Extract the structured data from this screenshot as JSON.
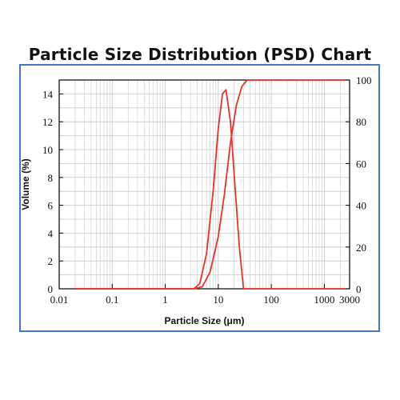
{
  "colors": {
    "frame": "#4a74c9",
    "curve": "#e8312a",
    "grid": "#c8c8c8",
    "axis": "#000000"
  },
  "chart_data": {
    "type": "line",
    "title": "Particle Size Distribution (PSD) Chart",
    "xlabel": "Particle Size (μm)",
    "ylabel": "Volume (%)",
    "x_scale": "log",
    "xlim": [
      0.01,
      3000
    ],
    "ylim_left": [
      0,
      15
    ],
    "ylim_right": [
      0,
      100
    ],
    "x_tick_labels": [
      "0.01",
      "0.1",
      "1",
      "10",
      "100",
      "1000",
      "3000"
    ],
    "y_left_tick_labels": [
      "0",
      "2",
      "4",
      "6",
      "8",
      "10",
      "12",
      "14"
    ],
    "y_right_tick_labels": [
      "0",
      "20",
      "40",
      "60",
      "80",
      "100"
    ],
    "grid": true,
    "series": [
      {
        "axis": "left",
        "x": [
          0.02,
          1.0,
          3.5,
          4.5,
          6.0,
          8.0,
          10.0,
          12.0,
          14.0,
          17.0,
          21.0,
          25.0,
          30.0,
          50.0,
          300.0,
          2500.0
        ],
        "values": [
          0,
          0,
          0,
          0.4,
          2.5,
          7.0,
          11.5,
          14.0,
          14.3,
          12.0,
          7.0,
          3.0,
          0,
          0,
          0,
          0
        ]
      },
      {
        "axis": "right",
        "x": [
          0.02,
          1.0,
          3.5,
          5.0,
          7.0,
          10.0,
          13.0,
          17.0,
          22.0,
          28.0,
          35.0,
          100.0,
          1000.0,
          2500.0
        ],
        "values": [
          0,
          0,
          0,
          1,
          8,
          25,
          45,
          70,
          88,
          97,
          100,
          100,
          100,
          100
        ]
      }
    ]
  }
}
